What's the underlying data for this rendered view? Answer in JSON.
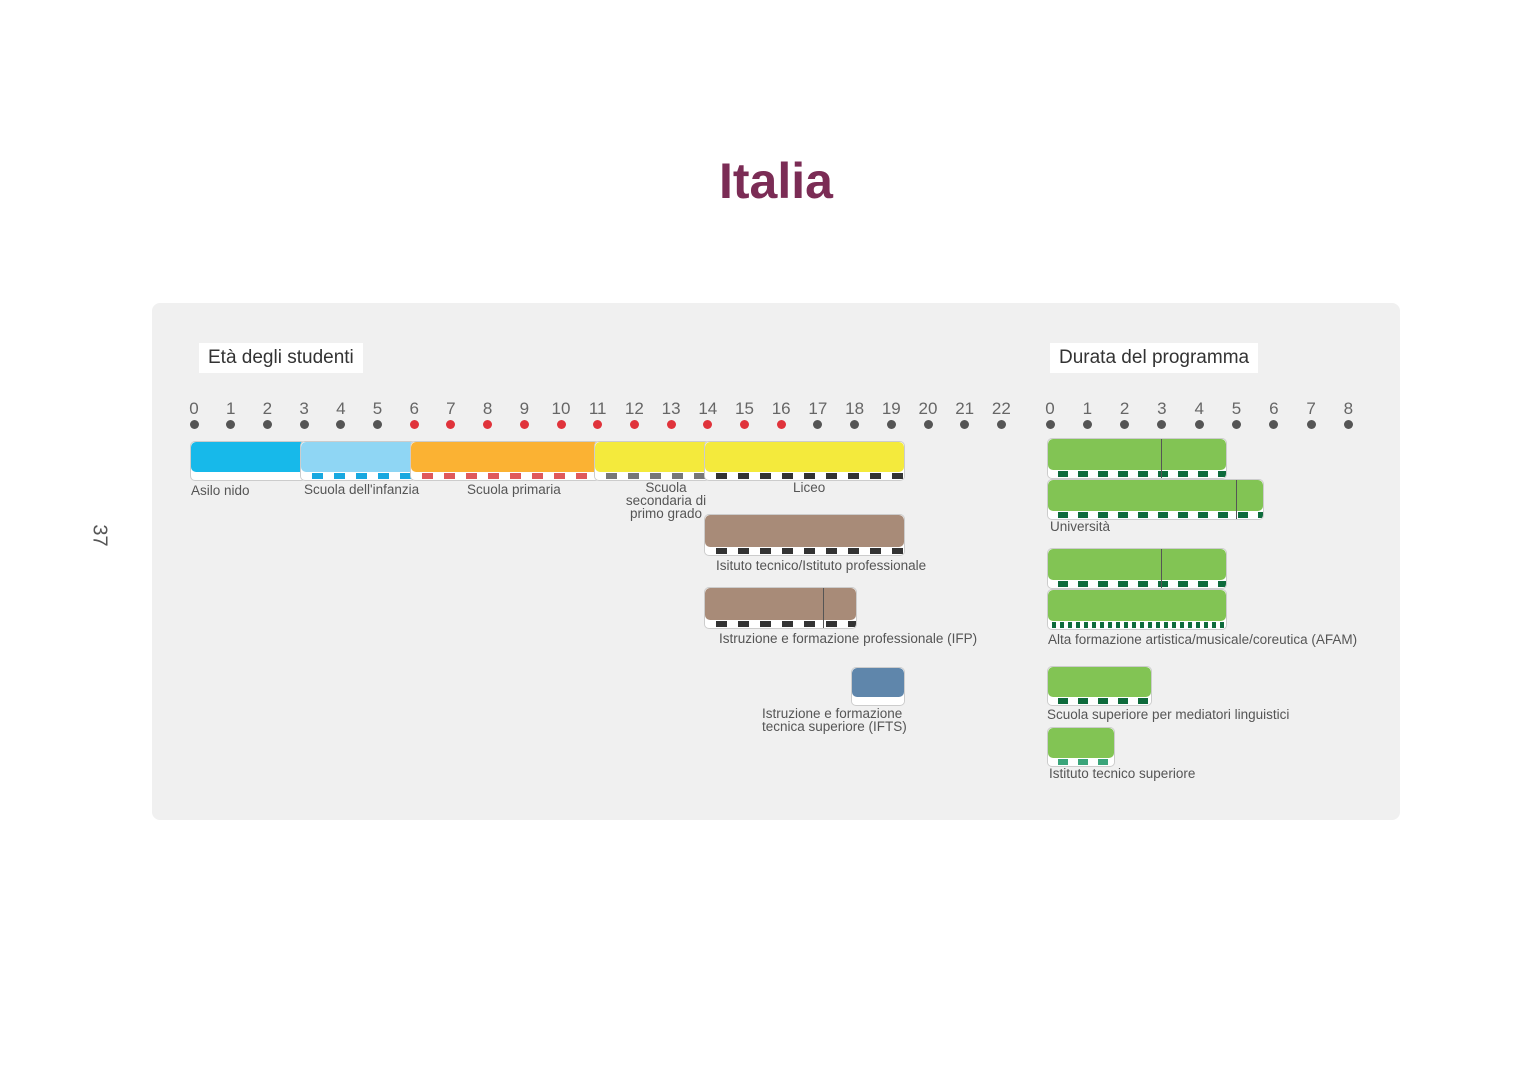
{
  "title": "Italia",
  "page_number": "37",
  "ages_header": "Età degli studenti",
  "duration_header": "Durata del programma",
  "age_ticks": [
    "0",
    "1",
    "2",
    "3",
    "4",
    "5",
    "6",
    "7",
    "8",
    "9",
    "10",
    "11",
    "12",
    "13",
    "14",
    "15",
    "16",
    "17",
    "18",
    "19",
    "20",
    "21",
    "22"
  ],
  "compulsory_ages": [
    6,
    16
  ],
  "duration_ticks": [
    "0",
    "1",
    "2",
    "3",
    "4",
    "5",
    "6",
    "7",
    "8"
  ],
  "colors": {
    "title": "#7b2c55",
    "dot": "#555555",
    "compulsory_dot": "#e0333b",
    "asilo": "#17b9ea",
    "infanzia": "#8fd6f4",
    "primaria": "#fbb233",
    "secondaria": "#f4ea3c",
    "tecnico": "#a88b78",
    "ifts": "#5f86ab",
    "tertiary": "#82c454",
    "tertiary_stripe": "#0e6b3c"
  },
  "age_programmes": [
    {
      "label": "Asilo nido",
      "from": 0,
      "to": 3,
      "color": "#17b9ea",
      "stripe": ""
    },
    {
      "label": "Scuola dell'infanzia",
      "from": 3,
      "to": 6,
      "color": "#8fd6f4",
      "stripe": "#17a8e0"
    },
    {
      "label": "Scuola primaria",
      "from": 6,
      "to": 11,
      "color": "#fbb233",
      "stripe": "#e0595b"
    },
    {
      "label": "Scuola secondaria di primo grado",
      "from": 11,
      "to": 14,
      "color": "#f4ea3c",
      "stripe": "#777"
    },
    {
      "label": "Liceo",
      "from": 14,
      "to": 19,
      "color": "#f4ea3c",
      "stripe": "#333"
    },
    {
      "label": "Isituto tecnico/Istituto professionale",
      "from": 14,
      "to": 19,
      "color": "#a88b78",
      "stripe": "#333"
    },
    {
      "label": "Istruzione e formazione professionale (IFP)",
      "from": 14,
      "to": 18,
      "divider": 17,
      "color": "#a88b78",
      "stripe": "#333"
    },
    {
      "label": "Istruzione e formazione tecnica superiore (IFTS)",
      "from": 18,
      "to": 19,
      "color": "#5f86ab",
      "stripe": "#fff"
    }
  ],
  "duration_programmes": [
    {
      "label": "",
      "from": 0,
      "to": 5,
      "divider": 3
    },
    {
      "label": "Università",
      "from": 0,
      "to": 6,
      "divider": 5
    },
    {
      "label": "",
      "from": 0,
      "to": 5,
      "divider": 3
    },
    {
      "label": "Alta formazione artistica/musicale/coreutica (AFAM)",
      "from": 0,
      "to": 5
    },
    {
      "label": "Scuola superiore per mediatori linguistici",
      "from": 0,
      "to": 3
    },
    {
      "label": "Istituto tecnico superiore",
      "from": 0,
      "to": 2
    }
  ]
}
